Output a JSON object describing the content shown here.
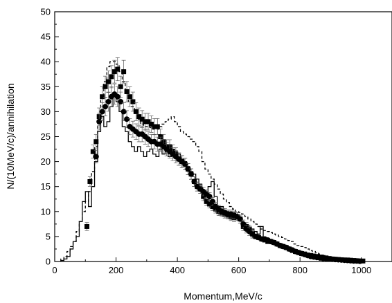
{
  "chart_data": {
    "type": "scatter",
    "xlabel": "Momentum,MeV/c",
    "ylabel": "N/(10MeV/c)/annihilation",
    "xlim": [
      0,
      1100
    ],
    "ylim": [
      0,
      50
    ],
    "x_ticks": [
      0,
      200,
      400,
      600,
      800,
      1000
    ],
    "y_ticks": [
      0,
      5,
      10,
      15,
      20,
      25,
      30,
      35,
      40,
      45,
      50
    ],
    "grid": false,
    "legend": "none",
    "series": [
      {
        "style": "dashed-histogram",
        "color": "#000000",
        "x": [
          20,
          30,
          40,
          50,
          60,
          70,
          80,
          90,
          100,
          110,
          120,
          130,
          140,
          150,
          160,
          170,
          180,
          190,
          200,
          210,
          220,
          230,
          240,
          250,
          260,
          270,
          280,
          290,
          300,
          310,
          320,
          330,
          340,
          350,
          360,
          370,
          380,
          390,
          400,
          410,
          420,
          430,
          440,
          450,
          460,
          470,
          480,
          490,
          500,
          510,
          520,
          530,
          540,
          550,
          560,
          570,
          580,
          590,
          600,
          610,
          620,
          630,
          640,
          650,
          660,
          670,
          680,
          690,
          700,
          710,
          720,
          730,
          740,
          750,
          760,
          770,
          780,
          790,
          800,
          810,
          820,
          830,
          840,
          850,
          860,
          870,
          880,
          890,
          900,
          910,
          920,
          930,
          940,
          950,
          960,
          970,
          980,
          990,
          1000
        ],
        "values": [
          0.5,
          1,
          2,
          3,
          4,
          6,
          8,
          10,
          12,
          14,
          18,
          23,
          28,
          33,
          36,
          39,
          40,
          40,
          39.5,
          38,
          36,
          34,
          32,
          31,
          30,
          28.5,
          27.5,
          27,
          27,
          26.8,
          26.5,
          26.5,
          27,
          27.5,
          28,
          28.5,
          29,
          28,
          27,
          26,
          25.5,
          25,
          24.5,
          24,
          23,
          22,
          20,
          18.5,
          17.5,
          16.5,
          15.5,
          14.5,
          13.5,
          12.5,
          11.8,
          11,
          10.5,
          10,
          9.8,
          9.5,
          9,
          8.5,
          8,
          7.5,
          7,
          6.5,
          6.2,
          6,
          5.8,
          5.5,
          5.3,
          5,
          4.8,
          4.5,
          4.2,
          4,
          3.5,
          3.2,
          3,
          2.8,
          2.5,
          2.2,
          2,
          1.8,
          1.5,
          1.3,
          1.1,
          0.9,
          0.7,
          0.6,
          0.5,
          0.4,
          0.35,
          0.3,
          0.25,
          0.2,
          0.15,
          0.1,
          0
        ]
      },
      {
        "style": "solid-histogram",
        "color": "#000000",
        "x": [
          20,
          30,
          40,
          50,
          60,
          70,
          80,
          90,
          100,
          110,
          120,
          130,
          140,
          150,
          160,
          170,
          180,
          190,
          200,
          210,
          220,
          230,
          240,
          250,
          260,
          270,
          280,
          290,
          300,
          310,
          320,
          330,
          340,
          350,
          360,
          370,
          380,
          390,
          400,
          410,
          420,
          430,
          440,
          450,
          460,
          470,
          480,
          490,
          500,
          510,
          520,
          530,
          540,
          550,
          560,
          570,
          580,
          590,
          600,
          610,
          620,
          630,
          640,
          650,
          660,
          670,
          680,
          690,
          700,
          710,
          720,
          730,
          740,
          750,
          760,
          770,
          780,
          790,
          800,
          810,
          820,
          830,
          840,
          850,
          860,
          870,
          880,
          890,
          900,
          910,
          920,
          930,
          940,
          950,
          960,
          970,
          980,
          990,
          1000
        ],
        "values": [
          0.2,
          0.5,
          1,
          2.5,
          4,
          5,
          8,
          12,
          14,
          11,
          15,
          20,
          26,
          29,
          27,
          28,
          31,
          33,
          32,
          30,
          27,
          26,
          24,
          23,
          22,
          23,
          22,
          21,
          22,
          22.5,
          21.5,
          21,
          22.5,
          21.5,
          22,
          21,
          22.5,
          22,
          21.5,
          20.5,
          20,
          19,
          18,
          17.5,
          16.5,
          15.5,
          14,
          13,
          15,
          16,
          13,
          11,
          11,
          10,
          9.5,
          8.5,
          8.5,
          9,
          8.5,
          7.5,
          7,
          6.5,
          6.5,
          6,
          5.5,
          7,
          4.5,
          4.5,
          4,
          4,
          3.5,
          3.5,
          3,
          2.8,
          2.5,
          2.3,
          2,
          1.8,
          1.5,
          1.3,
          1.1,
          1,
          0.8,
          0.7,
          0.6,
          0.5,
          0.4,
          0.3,
          0.25,
          0.2,
          0.15,
          0.1,
          0.1,
          0.05,
          0.05,
          0,
          0,
          0,
          0
        ]
      },
      {
        "style": "square-markers",
        "color": "#000000",
        "x": [
          105,
          115,
          125,
          135,
          145,
          155,
          165,
          175,
          185,
          195,
          205,
          215,
          225,
          235,
          245,
          255,
          265,
          275,
          285,
          295,
          305,
          315,
          325,
          335,
          345,
          355,
          365,
          375,
          385,
          395,
          405,
          415,
          425,
          435,
          445,
          455,
          465,
          475,
          485,
          495,
          505,
          515,
          525,
          535,
          545,
          555,
          565,
          575,
          585,
          595,
          605,
          615,
          625,
          635,
          645,
          655,
          665,
          675,
          685,
          695,
          705,
          715,
          725,
          735,
          745,
          755,
          765,
          775,
          785,
          795,
          805,
          815,
          825,
          835,
          845,
          855,
          865,
          875,
          885,
          895,
          905,
          915,
          925,
          935,
          945,
          955,
          965,
          975,
          985,
          995,
          1005
        ],
        "values": [
          7,
          16,
          22,
          24,
          29,
          33,
          35,
          36,
          37,
          38,
          38.5,
          35,
          38,
          34,
          33,
          32,
          30,
          29,
          28.5,
          28,
          28,
          27.5,
          27,
          27,
          25,
          24,
          23,
          23,
          22,
          21.5,
          20.5,
          20,
          19.5,
          18.5,
          17.5,
          16,
          15,
          14.5,
          13,
          12,
          11.5,
          11,
          10.5,
          10,
          9.8,
          9.5,
          9.3,
          9,
          8.8,
          9,
          8.5,
          7,
          7,
          6.5,
          5.5,
          5,
          4.8,
          4.5,
          4.3,
          4,
          4,
          3.8,
          3.5,
          3.2,
          3,
          2.8,
          2.5,
          2.2,
          2,
          1.8,
          1.6,
          1.5,
          1.3,
          1.2,
          1.1,
          1,
          0.9,
          0.8,
          0.7,
          0.6,
          0.5,
          0.45,
          0.4,
          0.35,
          0.3,
          0.3,
          0.25,
          0.2,
          0.15,
          0.1,
          0.1
        ]
      },
      {
        "style": "circle-markers",
        "color": "#000000",
        "x": [
          135,
          145,
          155,
          165,
          175,
          185,
          195,
          205,
          215,
          225,
          235,
          245,
          255,
          265,
          275,
          285,
          295,
          305,
          315,
          325,
          335,
          345,
          355,
          365,
          375,
          385,
          395,
          405,
          415,
          425,
          435,
          445,
          455,
          465,
          475,
          485,
          495,
          505,
          515,
          525,
          535,
          545,
          555,
          565,
          575,
          585,
          595,
          605,
          615,
          625,
          635,
          645,
          655,
          665,
          675,
          685,
          695,
          705,
          715,
          725,
          735,
          745,
          755,
          765,
          775,
          785,
          795,
          805,
          815,
          825,
          835,
          845,
          855,
          865,
          875,
          885,
          895,
          905,
          915,
          925,
          935,
          945,
          955,
          965,
          975,
          985,
          995
        ],
        "values": [
          21,
          28,
          30,
          31,
          32,
          33,
          33.5,
          33,
          32,
          30,
          28.5,
          27,
          26.5,
          26,
          25.5,
          25.5,
          25,
          24.5,
          24,
          24,
          23.5,
          23.5,
          23,
          22.5,
          22,
          21.5,
          21,
          20.5,
          20,
          19.5,
          18.5,
          17.5,
          16,
          15,
          14.5,
          14,
          13.5,
          13,
          12,
          11,
          10.5,
          10,
          9.8,
          9.5,
          9.5,
          9.3,
          9,
          8.5,
          7.5,
          6.5,
          6,
          5.5,
          5,
          4.8,
          4.5,
          4.5,
          4.3,
          4,
          3.8,
          3.5,
          3.2,
          3,
          2.8,
          2.5,
          2.3,
          2,
          1.8,
          1.6,
          1.4,
          1.2,
          1,
          0.9,
          0.8,
          0.7,
          0.6,
          0.55,
          0.5,
          0.45,
          0.4,
          0.35,
          0.3,
          0.25,
          0.2,
          0.15,
          0.1,
          0.1,
          0.05
        ]
      }
    ]
  }
}
